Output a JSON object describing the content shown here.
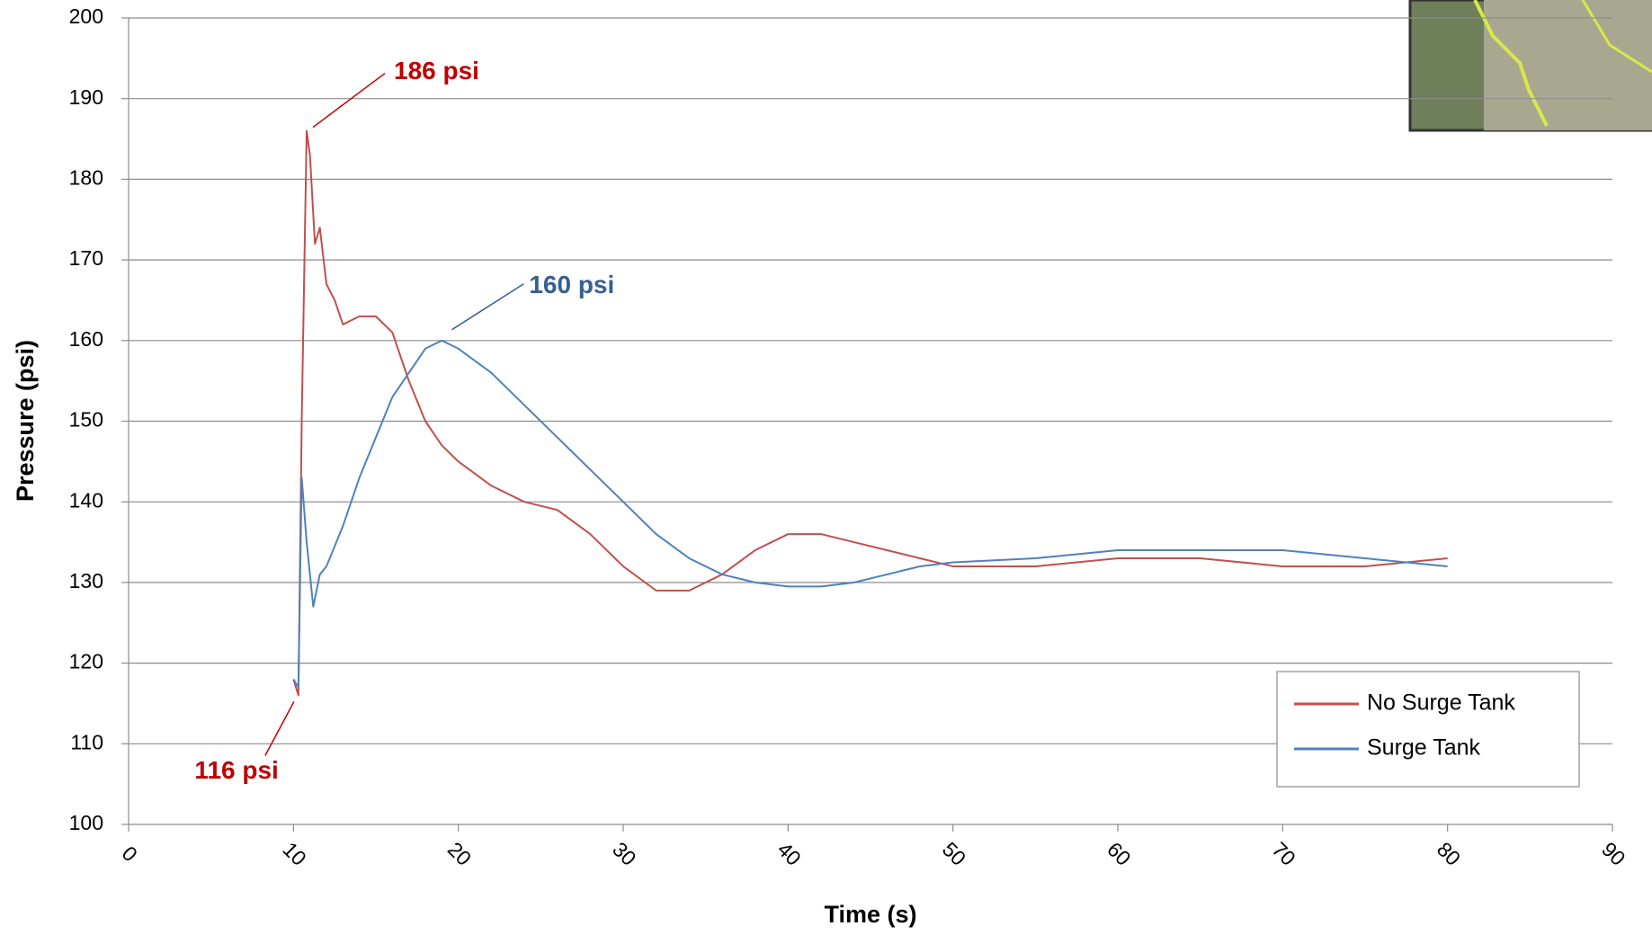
{
  "chart_data": {
    "type": "line",
    "x_label": "Time (s)",
    "y_label": "Pressure (psi)",
    "xlim": [
      0,
      90
    ],
    "xticks": [
      0,
      10,
      20,
      30,
      40,
      50,
      60,
      70,
      80,
      90
    ],
    "ylim": [
      100,
      200
    ],
    "yticks": [
      100,
      110,
      120,
      130,
      140,
      150,
      160,
      170,
      180,
      190,
      200
    ],
    "grid": true,
    "legend": "lower right",
    "series": [
      {
        "name": "No Surge Tank",
        "color": "#c0504d",
        "x": [
          10,
          10.3,
          10.5,
          10.8,
          11,
          11.3,
          11.6,
          12,
          12.5,
          13,
          14,
          15,
          16,
          17,
          18,
          19,
          20,
          22,
          24,
          26,
          28,
          30,
          32,
          34,
          36,
          38,
          40,
          42,
          44,
          46,
          48,
          50,
          55,
          60,
          65,
          70,
          75,
          80
        ],
        "values": [
          118,
          116,
          150,
          186,
          183,
          172,
          174,
          167,
          165,
          162,
          163,
          163,
          161,
          155,
          150,
          147,
          145,
          142,
          140,
          139,
          136,
          132,
          129,
          129,
          131,
          134,
          136,
          136,
          135,
          134,
          133,
          132,
          132,
          133,
          133,
          132,
          132,
          133
        ]
      },
      {
        "name": "Surge Tank",
        "color": "#4f81bd",
        "x": [
          10,
          10.3,
          10.5,
          10.8,
          11.2,
          11.6,
          12,
          13,
          14,
          15,
          16,
          17,
          18,
          19,
          20,
          22,
          24,
          26,
          28,
          30,
          32,
          34,
          36,
          38,
          40,
          42,
          44,
          46,
          48,
          50,
          55,
          60,
          65,
          70,
          75,
          80
        ],
        "values": [
          118,
          117,
          143,
          135,
          127,
          131,
          132,
          137,
          143,
          148,
          153,
          156,
          159,
          160,
          159,
          156,
          152,
          148,
          144,
          140,
          136,
          133,
          131,
          130,
          129.5,
          129.5,
          130,
          131,
          132,
          132.5,
          133,
          134,
          134,
          134,
          133,
          132
        ]
      }
    ],
    "annotations": [
      {
        "label": "186 psi",
        "x": 10.8,
        "y": 186,
        "color": "#c00000"
      },
      {
        "label": "160 psi",
        "x": 19,
        "y": 160,
        "color": "#376092"
      },
      {
        "label": "116 psi",
        "x": 10.3,
        "y": 116,
        "color": "#c00000"
      }
    ]
  }
}
